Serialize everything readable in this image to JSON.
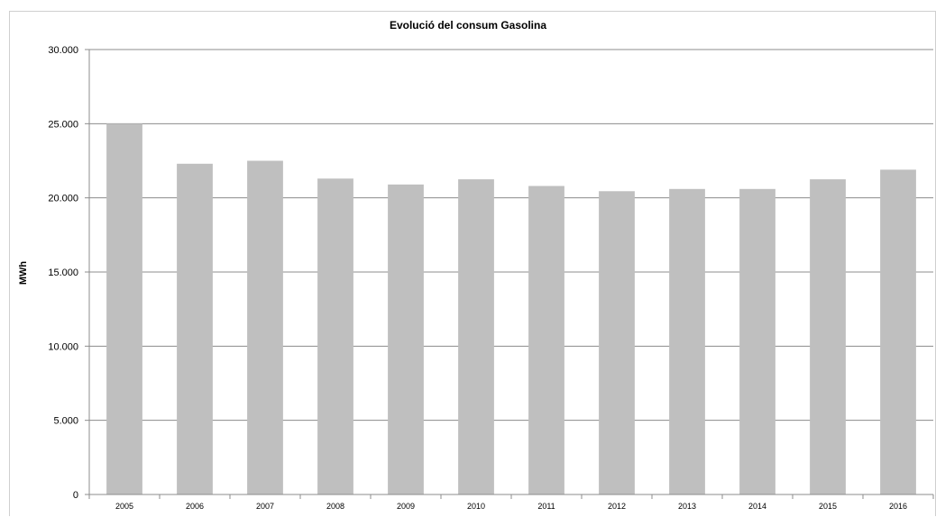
{
  "chart_data": {
    "type": "bar",
    "title": "Evolució del consum Gasolina",
    "xlabel": "",
    "ylabel": "MWh",
    "categories": [
      "2005",
      "2006",
      "2007",
      "2008",
      "2009",
      "2010",
      "2011",
      "2012",
      "2013",
      "2014",
      "2015",
      "2016"
    ],
    "values": [
      25000,
      22300,
      22500,
      21300,
      20900,
      21250,
      20800,
      20450,
      20600,
      20600,
      21250,
      21900
    ],
    "ylim": [
      0,
      30000
    ],
    "yticks": [
      0,
      5000,
      10000,
      15000,
      20000,
      25000,
      30000
    ],
    "ytick_labels": [
      "0",
      "5.000",
      "10.000",
      "15.000",
      "20.000",
      "25.000",
      "30.000"
    ],
    "grid": true,
    "legend": "none",
    "bar_color": "#bfbfbf",
    "grid_color": "#8c8c8c"
  }
}
